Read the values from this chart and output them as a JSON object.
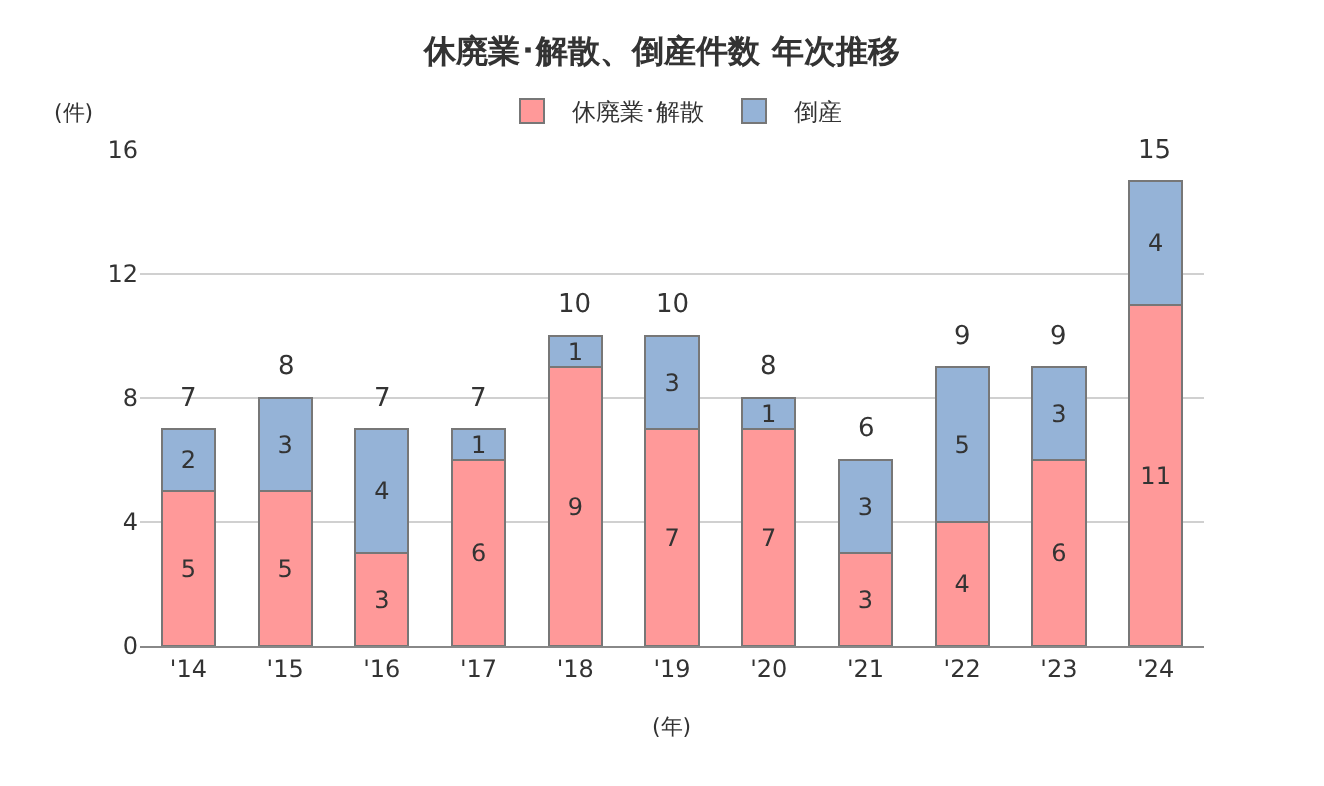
{
  "chart_data": {
    "type": "bar",
    "title": "休廃業･解散、倒産件数 年次推移",
    "xlabel": "(年)",
    "ylabel": "(件)",
    "categories": [
      "'14",
      "'15",
      "'16",
      "'17",
      "'18",
      "'19",
      "'20",
      "'21",
      "'22",
      "'23",
      "'24"
    ],
    "series": [
      {
        "name": "休廃業･解散",
        "color": "#ff9999",
        "values": [
          5,
          5,
          3,
          6,
          9,
          7,
          7,
          3,
          4,
          6,
          11
        ]
      },
      {
        "name": "倒産",
        "color": "#95b3d7",
        "values": [
          2,
          3,
          4,
          1,
          1,
          3,
          1,
          3,
          5,
          3,
          4
        ]
      }
    ],
    "stacked": true,
    "data_labels": true,
    "totals": [
      "7",
      "8",
      "7",
      "7",
      "10",
      "10",
      "8",
      "6",
      "9",
      "9",
      "15"
    ],
    "ylim": [
      0,
      16
    ],
    "yticks": [
      0,
      4,
      8,
      12,
      16
    ],
    "grid": "y",
    "legend": "top"
  }
}
